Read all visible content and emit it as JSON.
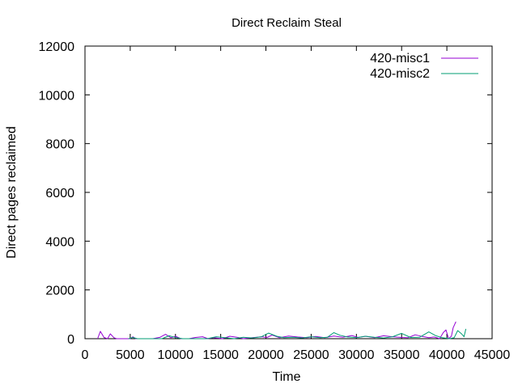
{
  "chart_data": {
    "type": "line",
    "title": "Direct Reclaim Steal",
    "xlabel": "Time",
    "ylabel": "Direct pages reclaimed",
    "xlim": [
      0,
      45000
    ],
    "ylim": [
      0,
      12000
    ],
    "xticks": [
      0,
      5000,
      10000,
      15000,
      20000,
      25000,
      30000,
      35000,
      40000,
      45000
    ],
    "yticks": [
      0,
      2000,
      4000,
      6000,
      8000,
      10000,
      12000
    ],
    "grid": false,
    "legend_position": "top-right",
    "series": [
      {
        "name": "420-misc1",
        "color": "#9400d3",
        "x": [
          1400,
          1700,
          2100,
          2500,
          2800,
          3200,
          3500,
          5000,
          5300,
          5600,
          7500,
          8300,
          8900,
          9500,
          10000,
          10600,
          11500,
          12200,
          13000,
          13600,
          14200,
          15200,
          16000,
          16800,
          17500,
          18500,
          19500,
          20100,
          20700,
          21500,
          22500,
          23500,
          24500,
          25500,
          26500,
          27500,
          28500,
          29500,
          30200,
          31000,
          32000,
          33000,
          34000,
          35000,
          35700,
          36500,
          37300,
          38000,
          38600,
          39200,
          39600,
          39900,
          40200,
          40500,
          40700,
          41000
        ],
        "y": [
          0,
          300,
          50,
          0,
          200,
          40,
          0,
          0,
          80,
          0,
          0,
          60,
          180,
          40,
          100,
          0,
          0,
          50,
          80,
          0,
          40,
          0,
          100,
          60,
          0,
          40,
          80,
          50,
          150,
          40,
          110,
          70,
          40,
          90,
          40,
          110,
          60,
          130,
          50,
          100,
          40,
          120,
          80,
          50,
          40,
          160,
          90,
          40,
          70,
          0,
          250,
          360,
          0,
          100,
          450,
          700
        ]
      },
      {
        "name": "420-misc2",
        "color": "#009e73",
        "x": [
          4800,
          5300,
          5800,
          8500,
          9300,
          10100,
          10800,
          13500,
          14500,
          15500,
          16500,
          17500,
          18500,
          19500,
          20300,
          21200,
          22000,
          23000,
          24000,
          25000,
          26000,
          26800,
          27500,
          28200,
          29000,
          30000,
          31000,
          32000,
          33000,
          34000,
          35000,
          36000,
          37000,
          38000,
          38800,
          39500,
          40300,
          40800,
          41200,
          41600,
          41900,
          42100
        ],
        "y": [
          0,
          50,
          0,
          0,
          120,
          40,
          0,
          0,
          80,
          40,
          0,
          60,
          30,
          80,
          230,
          100,
          40,
          60,
          30,
          80,
          40,
          60,
          250,
          140,
          70,
          40,
          100,
          60,
          30,
          80,
          220,
          50,
          60,
          280,
          120,
          40,
          0,
          40,
          330,
          210,
          80,
          400
        ]
      }
    ]
  }
}
